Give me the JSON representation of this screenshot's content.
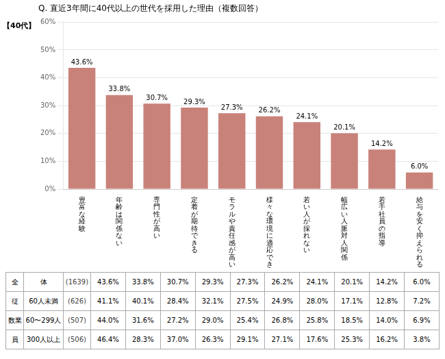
{
  "chart_data": {
    "type": "bar",
    "title": "Q. 直近3年間に40代以上の世代を採用した理由（複数回答）",
    "annotations": [
      "【40代】"
    ],
    "categories": [
      "豊富な経験",
      "年齢は関係ない",
      "専門性が高い",
      "定着が期待できる",
      "モラルや責任感が高い",
      "様々な環境に適応でき",
      "若い人が採れない",
      "幅広い人脈対人関係",
      "若手社員の指導",
      "給与を安く抑えられる"
    ],
    "values": [
      43.6,
      33.8,
      30.7,
      29.3,
      27.3,
      26.2,
      24.1,
      20.1,
      14.2,
      6.0
    ],
    "value_labels": [
      "43.6%",
      "33.8%",
      "30.7%",
      "29.3%",
      "27.3%",
      "26.2%",
      "24.1%",
      "20.1%",
      "14.2%",
      "6.0%"
    ],
    "data_labels": true,
    "color": "#c9827a",
    "ylim": [
      0,
      60
    ],
    "yticks": [
      {
        "value": 0,
        "label": "0%"
      },
      {
        "value": 10,
        "label": "10%"
      },
      {
        "value": 20,
        "label": "20%"
      },
      {
        "value": 30,
        "label": "30%"
      },
      {
        "value": 40,
        "label": "40%"
      },
      {
        "value": 50,
        "label": "50%"
      },
      {
        "value": 60,
        "label": "60%"
      }
    ],
    "grid": true,
    "table": [
      {
        "cells": [
          "全",
          "体",
          "(1639)"
        ],
        "values": [
          "43.6%",
          "33.8%",
          "30.7%",
          "29.3%",
          "27.3%",
          "26.2%",
          "24.1%",
          "20.1%",
          "14.2%",
          "6.0%"
        ]
      },
      {
        "cells": [
          "従",
          "60人未満",
          "(626)"
        ],
        "values": [
          "41.1%",
          "40.1%",
          "28.4%",
          "32.1%",
          "27.5%",
          "24.9%",
          "28.0%",
          "17.1%",
          "12.8%",
          "7.2%"
        ]
      },
      {
        "cells": [
          "数業",
          "60〜299人",
          "(507)"
        ],
        "values": [
          "44.0%",
          "31.6%",
          "27.2%",
          "29.0%",
          "25.4%",
          "26.8%",
          "25.8%",
          "18.5%",
          "14.0%",
          "6.9%"
        ]
      },
      {
        "cells": [
          "員",
          "300人以上",
          "(506)"
        ],
        "values": [
          "46.4%",
          "28.3%",
          "37.0%",
          "26.3%",
          "29.1%",
          "27.1%",
          "17.6%",
          "25.3%",
          "16.2%",
          "3.8%"
        ]
      }
    ]
  }
}
